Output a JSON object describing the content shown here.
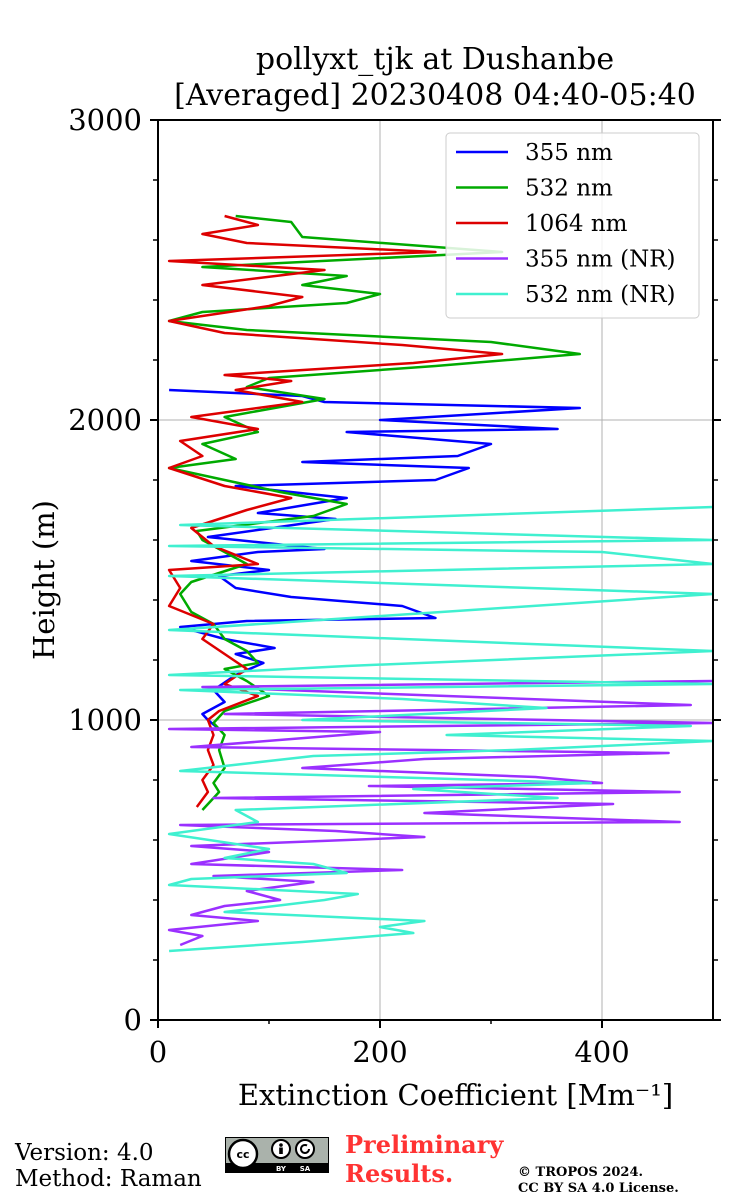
{
  "header": {
    "title_line1": "pollyxt_tjk at Dushanbe",
    "title_line2": "[Averaged] 20230408 04:40-05:40"
  },
  "footer": {
    "version": "Version: 4.0",
    "method": "Method: Raman",
    "preliminary_line1": "Preliminary",
    "preliminary_line2": "Results.",
    "copyright_line1": "© TROPOS 2024.",
    "copyright_line2": "CC BY SA 4.0 License.",
    "license_badge": {
      "cc": "cc",
      "by": "BY",
      "sa": "SA"
    }
  },
  "chart_data": {
    "type": "line",
    "xlabel": "Extinction Coefficient [Mm⁻¹]",
    "ylabel": "Height (m)",
    "xlim": [
      0,
      500
    ],
    "ylim": [
      0,
      3000
    ],
    "xticks": [
      0,
      200,
      400
    ],
    "yticks": [
      0,
      1000,
      2000,
      3000
    ],
    "grid": true,
    "legend_position": "top-right",
    "series": [
      {
        "name": "355 nm",
        "color": "#0000ff",
        "points": [
          [
            55,
            970
          ],
          [
            45,
            1000
          ],
          [
            40,
            1020
          ],
          [
            60,
            1060
          ],
          [
            50,
            1100
          ],
          [
            70,
            1150
          ],
          [
            95,
            1190
          ],
          [
            70,
            1220
          ],
          [
            105,
            1240
          ],
          [
            60,
            1270
          ],
          [
            20,
            1310
          ],
          [
            80,
            1330
          ],
          [
            250,
            1340
          ],
          [
            220,
            1380
          ],
          [
            120,
            1410
          ],
          [
            70,
            1440
          ],
          [
            55,
            1480
          ],
          [
            100,
            1500
          ],
          [
            30,
            1530
          ],
          [
            90,
            1560
          ],
          [
            150,
            1570
          ],
          [
            45,
            1610
          ],
          [
            160,
            1670
          ],
          [
            90,
            1690
          ],
          [
            170,
            1740
          ],
          [
            70,
            1780
          ],
          [
            250,
            1800
          ],
          [
            280,
            1840
          ],
          [
            130,
            1860
          ],
          [
            270,
            1880
          ],
          [
            300,
            1920
          ],
          [
            170,
            1960
          ],
          [
            360,
            1970
          ],
          [
            200,
            2000
          ],
          [
            380,
            2040
          ],
          [
            150,
            2060
          ],
          [
            130,
            2080
          ],
          [
            10,
            2100
          ]
        ]
      },
      {
        "name": "532 nm",
        "color": "#00aa00",
        "points": [
          [
            40,
            700
          ],
          [
            55,
            760
          ],
          [
            50,
            790
          ],
          [
            60,
            840
          ],
          [
            55,
            900
          ],
          [
            60,
            950
          ],
          [
            50,
            990
          ],
          [
            60,
            1030
          ],
          [
            100,
            1080
          ],
          [
            80,
            1130
          ],
          [
            60,
            1170
          ],
          [
            90,
            1190
          ],
          [
            80,
            1230
          ],
          [
            60,
            1270
          ],
          [
            50,
            1320
          ],
          [
            30,
            1360
          ],
          [
            20,
            1420
          ],
          [
            30,
            1460
          ],
          [
            80,
            1520
          ],
          [
            60,
            1560
          ],
          [
            40,
            1600
          ],
          [
            35,
            1630
          ],
          [
            140,
            1680
          ],
          [
            170,
            1720
          ],
          [
            110,
            1760
          ],
          [
            60,
            1800
          ],
          [
            10,
            1840
          ],
          [
            70,
            1870
          ],
          [
            40,
            1920
          ],
          [
            90,
            1960
          ],
          [
            60,
            2010
          ],
          [
            150,
            2070
          ],
          [
            80,
            2110
          ],
          [
            100,
            2140
          ],
          [
            250,
            2180
          ],
          [
            380,
            2220
          ],
          [
            300,
            2260
          ],
          [
            80,
            2300
          ],
          [
            10,
            2330
          ],
          [
            40,
            2360
          ],
          [
            170,
            2390
          ],
          [
            200,
            2420
          ],
          [
            130,
            2450
          ],
          [
            170,
            2480
          ],
          [
            40,
            2510
          ],
          [
            310,
            2560
          ],
          [
            130,
            2610
          ],
          [
            120,
            2660
          ],
          [
            70,
            2680
          ]
        ]
      },
      {
        "name": "1064 nm",
        "color": "#dd0000",
        "points": [
          [
            35,
            710
          ],
          [
            45,
            760
          ],
          [
            40,
            800
          ],
          [
            50,
            850
          ],
          [
            45,
            900
          ],
          [
            50,
            950
          ],
          [
            45,
            1000
          ],
          [
            55,
            1030
          ],
          [
            90,
            1080
          ],
          [
            60,
            1120
          ],
          [
            80,
            1170
          ],
          [
            60,
            1220
          ],
          [
            40,
            1270
          ],
          [
            50,
            1320
          ],
          [
            10,
            1380
          ],
          [
            20,
            1440
          ],
          [
            10,
            1500
          ],
          [
            90,
            1520
          ],
          [
            50,
            1580
          ],
          [
            30,
            1640
          ],
          [
            80,
            1700
          ],
          [
            120,
            1740
          ],
          [
            60,
            1780
          ],
          [
            10,
            1840
          ],
          [
            40,
            1880
          ],
          [
            20,
            1930
          ],
          [
            90,
            1970
          ],
          [
            30,
            2010
          ],
          [
            130,
            2060
          ],
          [
            70,
            2100
          ],
          [
            120,
            2130
          ],
          [
            60,
            2150
          ],
          [
            230,
            2190
          ],
          [
            310,
            2220
          ],
          [
            220,
            2250
          ],
          [
            60,
            2290
          ],
          [
            10,
            2330
          ],
          [
            100,
            2380
          ],
          [
            130,
            2410
          ],
          [
            40,
            2450
          ],
          [
            150,
            2500
          ],
          [
            10,
            2530
          ],
          [
            250,
            2560
          ],
          [
            80,
            2590
          ],
          [
            40,
            2620
          ],
          [
            90,
            2650
          ],
          [
            60,
            2680
          ]
        ]
      },
      {
        "name": "355 nm (NR)",
        "color": "#9b30ff",
        "points": [
          [
            20,
            250
          ],
          [
            40,
            280
          ],
          [
            10,
            300
          ],
          [
            90,
            330
          ],
          [
            30,
            350
          ],
          [
            60,
            380
          ],
          [
            110,
            400
          ],
          [
            80,
            430
          ],
          [
            140,
            460
          ],
          [
            50,
            480
          ],
          [
            220,
            500
          ],
          [
            30,
            520
          ],
          [
            100,
            560
          ],
          [
            30,
            580
          ],
          [
            240,
            610
          ],
          [
            160,
            630
          ],
          [
            20,
            650
          ],
          [
            470,
            660
          ],
          [
            240,
            690
          ],
          [
            410,
            720
          ],
          [
            50,
            740
          ],
          [
            470,
            760
          ],
          [
            190,
            780
          ],
          [
            400,
            790
          ],
          [
            340,
            810
          ],
          [
            130,
            840
          ],
          [
            240,
            870
          ],
          [
            460,
            890
          ],
          [
            30,
            910
          ],
          [
            200,
            960
          ],
          [
            10,
            970
          ],
          [
            500,
            990
          ],
          [
            60,
            1020
          ],
          [
            480,
            1050
          ],
          [
            40,
            1110
          ],
          [
            500,
            1130
          ]
        ]
      },
      {
        "name": "532 nm (NR)",
        "color": "#40f0d0",
        "points": [
          [
            10,
            230
          ],
          [
            130,
            260
          ],
          [
            230,
            290
          ],
          [
            200,
            310
          ],
          [
            240,
            330
          ],
          [
            60,
            360
          ],
          [
            150,
            400
          ],
          [
            180,
            420
          ],
          [
            10,
            450
          ],
          [
            30,
            470
          ],
          [
            170,
            490
          ],
          [
            140,
            520
          ],
          [
            60,
            540
          ],
          [
            100,
            570
          ],
          [
            10,
            620
          ],
          [
            90,
            660
          ],
          [
            70,
            700
          ],
          [
            360,
            740
          ],
          [
            230,
            770
          ],
          [
            390,
            790
          ],
          [
            20,
            830
          ],
          [
            140,
            880
          ],
          [
            320,
            900
          ],
          [
            500,
            930
          ],
          [
            260,
            950
          ],
          [
            480,
            980
          ],
          [
            130,
            1000
          ],
          [
            350,
            1040
          ],
          [
            220,
            1070
          ],
          [
            20,
            1100
          ],
          [
            500,
            1120
          ],
          [
            10,
            1150
          ],
          [
            170,
            1180
          ],
          [
            500,
            1230
          ],
          [
            10,
            1300
          ],
          [
            500,
            1420
          ],
          [
            10,
            1480
          ],
          [
            500,
            1520
          ],
          [
            400,
            1560
          ],
          [
            10,
            1580
          ],
          [
            500,
            1600
          ],
          [
            20,
            1650
          ],
          [
            500,
            1710
          ]
        ]
      }
    ]
  }
}
